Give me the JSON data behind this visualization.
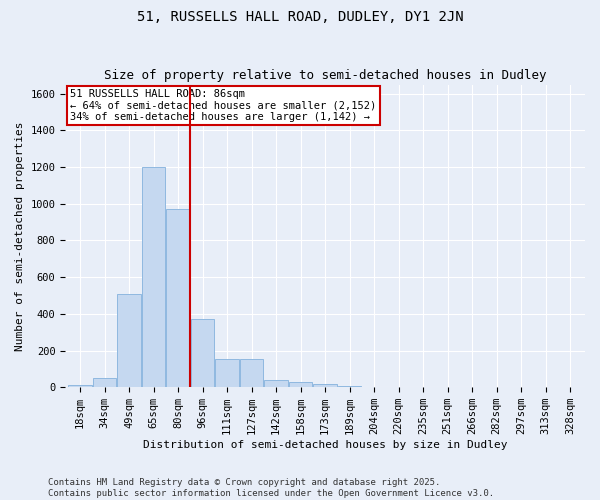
{
  "title": "51, RUSSELLS HALL ROAD, DUDLEY, DY1 2JN",
  "subtitle": "Size of property relative to semi-detached houses in Dudley",
  "xlabel": "Distribution of semi-detached houses by size in Dudley",
  "ylabel": "Number of semi-detached properties",
  "categories": [
    "18sqm",
    "34sqm",
    "49sqm",
    "65sqm",
    "80sqm",
    "96sqm",
    "111sqm",
    "127sqm",
    "142sqm",
    "158sqm",
    "173sqm",
    "189sqm",
    "204sqm",
    "220sqm",
    "235sqm",
    "251sqm",
    "266sqm",
    "282sqm",
    "297sqm",
    "313sqm",
    "328sqm"
  ],
  "values": [
    10,
    50,
    510,
    1200,
    970,
    370,
    155,
    155,
    40,
    30,
    15,
    5,
    2,
    2,
    2,
    0,
    0,
    0,
    0,
    0,
    0
  ],
  "bar_color": "#c5d8f0",
  "bar_edgecolor": "#8fb8e0",
  "vline_color": "#cc0000",
  "vline_x_idx": 4.5,
  "annotation_title": "51 RUSSELLS HALL ROAD: 86sqm",
  "annotation_line1": "← 64% of semi-detached houses are smaller (2,152)",
  "annotation_line2": "34% of semi-detached houses are larger (1,142) →",
  "annotation_box_edgecolor": "#cc0000",
  "ylim": [
    0,
    1650
  ],
  "yticks": [
    0,
    200,
    400,
    600,
    800,
    1000,
    1200,
    1400,
    1600
  ],
  "footer1": "Contains HM Land Registry data © Crown copyright and database right 2025.",
  "footer2": "Contains public sector information licensed under the Open Government Licence v3.0.",
  "background_color": "#e8eef8",
  "plot_bg_color": "#e8eef8",
  "grid_color": "#ffffff",
  "title_fontsize": 10,
  "subtitle_fontsize": 9,
  "tick_fontsize": 7.5,
  "axis_label_fontsize": 8,
  "annotation_fontsize": 7.5,
  "footer_fontsize": 6.5
}
